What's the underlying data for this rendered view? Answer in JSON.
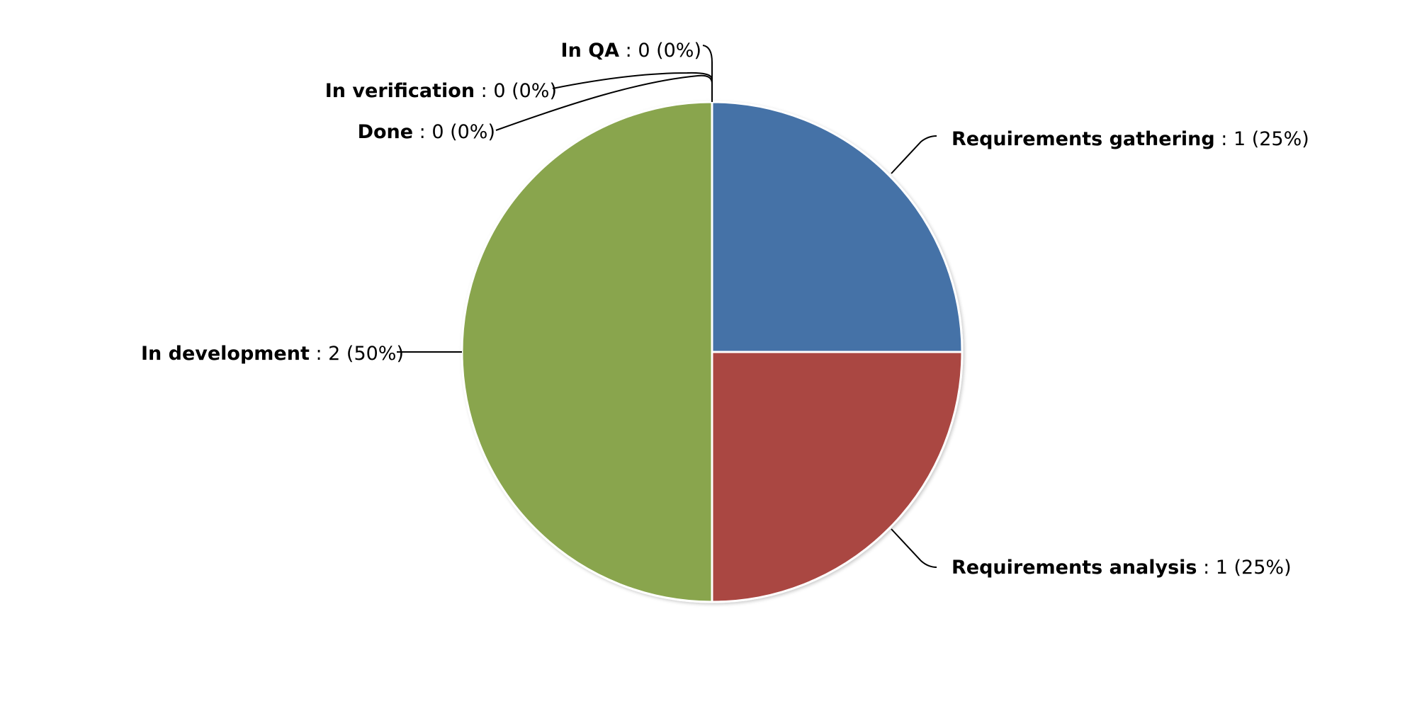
{
  "chart_data": {
    "type": "pie",
    "legend": "none",
    "slices": [
      {
        "name": "Requirements gathering",
        "value": 1,
        "percent": "25%",
        "color": "#4572A7",
        "label_side": "right"
      },
      {
        "name": "Requirements analysis",
        "value": 1,
        "percent": "25%",
        "color": "#AA4643",
        "label_side": "right"
      },
      {
        "name": "In development",
        "value": 2,
        "percent": "50%",
        "color": "#89A54E",
        "label_side": "left"
      },
      {
        "name": "Done",
        "value": 0,
        "percent": "0%",
        "color": "#80699B",
        "label_side": "left"
      },
      {
        "name": "In verification",
        "value": 0,
        "percent": "0%",
        "color": "#3D96AE",
        "label_side": "left"
      },
      {
        "name": "In QA",
        "value": 0,
        "percent": "0%",
        "color": "#DB843D",
        "label_side": "left"
      }
    ]
  }
}
